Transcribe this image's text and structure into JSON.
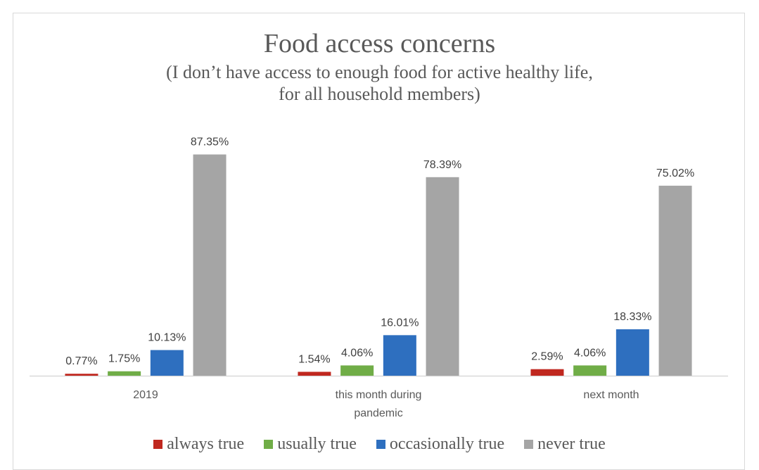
{
  "chart_data": {
    "type": "bar",
    "title": "Food access concerns",
    "subtitle_lines": [
      "(I don’t have access to enough food for active healthy life,",
      "for all household members)"
    ],
    "categories": [
      [
        "2019"
      ],
      [
        "this month during",
        "pandemic"
      ],
      [
        "next month"
      ]
    ],
    "series": [
      {
        "name": "always true",
        "color": "#c0281f",
        "values": [
          0.77,
          1.54,
          2.59
        ],
        "labels": [
          "0.77%",
          "1.54%",
          "2.59%"
        ]
      },
      {
        "name": "usually true",
        "color": "#70ad47",
        "values": [
          1.75,
          4.06,
          4.06
        ],
        "labels": [
          "1.75%",
          "4.06%",
          "4.06%"
        ]
      },
      {
        "name": "occasionally true",
        "color": "#2e6fbf",
        "values": [
          10.13,
          16.01,
          18.33
        ],
        "labels": [
          "10.13%",
          "16.01%",
          "18.33%"
        ]
      },
      {
        "name": "never true",
        "color": "#a5a5a5",
        "values": [
          87.35,
          78.39,
          75.02
        ],
        "labels": [
          "87.35%",
          "78.39%",
          "75.02%"
        ]
      }
    ],
    "xlabel": "",
    "ylabel": "",
    "ylim": [
      0,
      100
    ],
    "grid": false,
    "legend": "bottom"
  }
}
